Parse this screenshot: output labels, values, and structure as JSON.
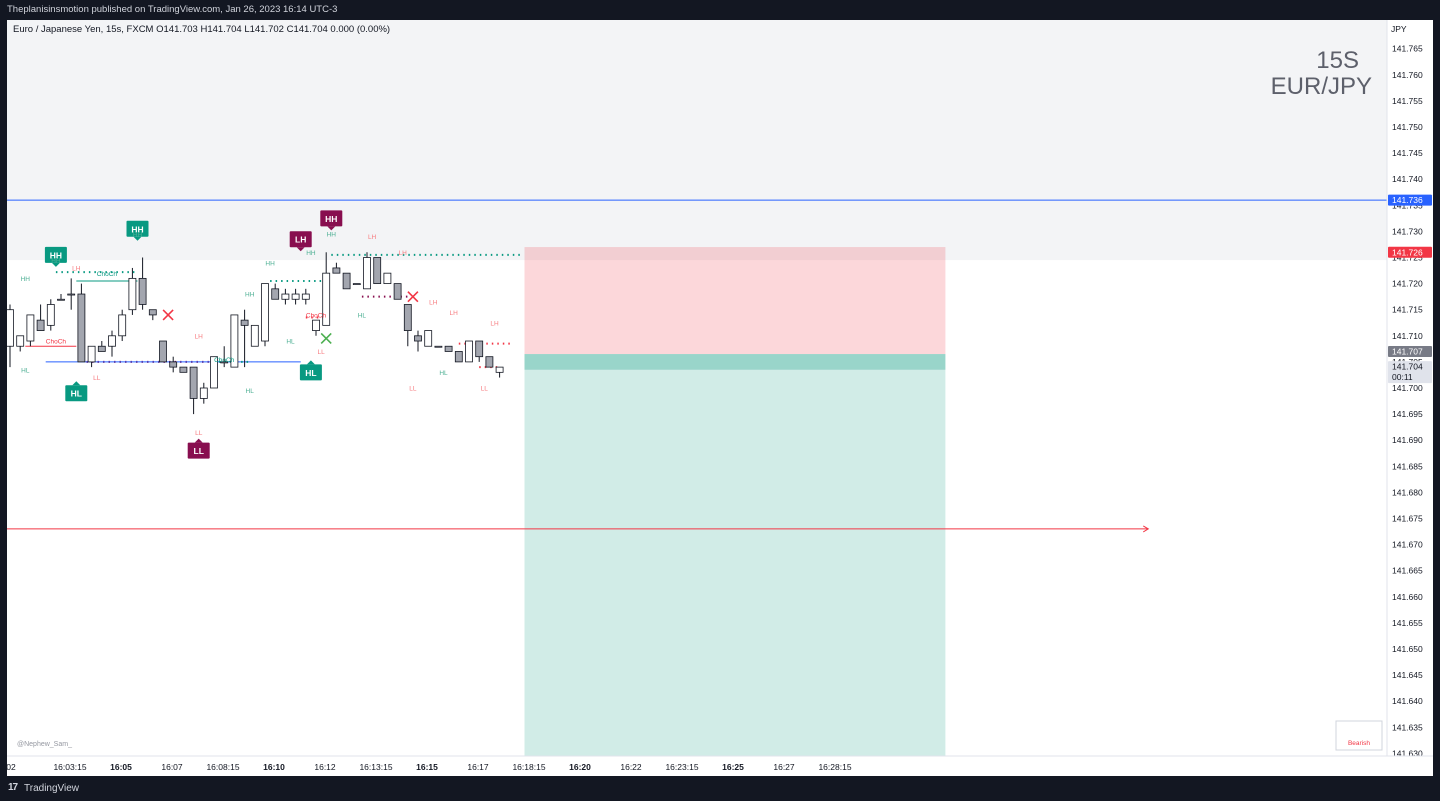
{
  "header": {
    "published_text": "Theplanisinsmotion published on TradingView.com, Jan 26, 2023 16:14 UTC-3",
    "legend_text": "Euro / Japanese Yen, 15s, FXCM  O141.703  H141.704  L141.702  C141.704  0.000 (0.00%)"
  },
  "watermark": {
    "interval": "15S",
    "symbol": "EUR/JPY"
  },
  "author_handle": "@Nephew_Sam_",
  "status_box_text": "Bearish",
  "footer": {
    "brand": "TradingView",
    "logo_glyph": "17"
  },
  "chart_data": {
    "type": "candlestick",
    "currency": "JPY",
    "y_axis": {
      "ylim": [
        141.6295,
        141.7705
      ],
      "ticks": [
        "141.765",
        "141.760",
        "141.755",
        "141.750",
        "141.745",
        "141.740",
        "141.735",
        "141.730",
        "141.725",
        "141.720",
        "141.715",
        "141.710",
        "141.705",
        "141.700",
        "141.695",
        "141.690",
        "141.685",
        "141.680",
        "141.675",
        "141.670",
        "141.665",
        "141.660",
        "141.655",
        "141.650",
        "141.645",
        "141.640",
        "141.635",
        "141.630"
      ]
    },
    "x_axis": {
      "labels": [
        {
          "t": "02",
          "bold": false
        },
        {
          "t": "16:03:15",
          "bold": false
        },
        {
          "t": "16:05",
          "bold": true
        },
        {
          "t": "16:07",
          "bold": false
        },
        {
          "t": "16:08:15",
          "bold": false
        },
        {
          "t": "16:10",
          "bold": true
        },
        {
          "t": "16:12",
          "bold": false
        },
        {
          "t": "16:13:15",
          "bold": false
        },
        {
          "t": "16:15",
          "bold": true
        },
        {
          "t": "16:17",
          "bold": false
        },
        {
          "t": "16:18:15",
          "bold": false
        },
        {
          "t": "16:20",
          "bold": true
        },
        {
          "t": "16:22",
          "bold": false
        },
        {
          "t": "16:23:15",
          "bold": false
        },
        {
          "t": "16:25",
          "bold": true
        },
        {
          "t": "16:27",
          "bold": false
        },
        {
          "t": "16:28:15",
          "bold": false
        }
      ]
    },
    "price_labels": [
      {
        "value": 141.736,
        "text": "141.736",
        "color": "#2962ff"
      },
      {
        "value": 141.726,
        "text": "141.726",
        "color": "#f23645"
      },
      {
        "value": 141.707,
        "text": "141.707",
        "color": "#787b86"
      },
      {
        "value": 141.704,
        "text": "141.704",
        "sub": "00:11",
        "color": "#e0e3eb"
      }
    ],
    "candles": [
      {
        "o": 141.708,
        "h": 141.716,
        "l": 141.704,
        "c": 141.715
      },
      {
        "o": 141.708,
        "h": 141.71,
        "l": 141.707,
        "c": 141.71
      },
      {
        "o": 141.709,
        "h": 141.713,
        "l": 141.708,
        "c": 141.714
      },
      {
        "o": 141.713,
        "h": 141.716,
        "l": 141.712,
        "c": 141.711
      },
      {
        "o": 141.712,
        "h": 141.717,
        "l": 141.711,
        "c": 141.716
      },
      {
        "o": 141.717,
        "h": 141.718,
        "l": 141.717,
        "c": 141.717
      },
      {
        "o": 141.718,
        "h": 141.721,
        "l": 141.715,
        "c": 141.718
      },
      {
        "o": 141.718,
        "h": 141.72,
        "l": 141.705,
        "c": 141.705
      },
      {
        "o": 141.705,
        "h": 141.708,
        "l": 141.704,
        "c": 141.708
      },
      {
        "o": 141.708,
        "h": 141.709,
        "l": 141.707,
        "c": 141.707
      },
      {
        "o": 141.708,
        "h": 141.711,
        "l": 141.706,
        "c": 141.71
      },
      {
        "o": 141.71,
        "h": 141.715,
        "l": 141.709,
        "c": 141.714
      },
      {
        "o": 141.715,
        "h": 141.723,
        "l": 141.714,
        "c": 141.721
      },
      {
        "o": 141.721,
        "h": 141.725,
        "l": 141.715,
        "c": 141.716
      },
      {
        "o": 141.715,
        "h": 141.715,
        "l": 141.713,
        "c": 141.714
      },
      {
        "o": 141.709,
        "h": 141.709,
        "l": 141.705,
        "c": 141.705
      },
      {
        "o": 141.705,
        "h": 141.706,
        "l": 141.703,
        "c": 141.704
      },
      {
        "o": 141.704,
        "h": 141.704,
        "l": 141.703,
        "c": 141.703
      },
      {
        "o": 141.704,
        "h": 141.704,
        "l": 141.695,
        "c": 141.698
      },
      {
        "o": 141.698,
        "h": 141.701,
        "l": 141.697,
        "c": 141.7
      },
      {
        "o": 141.7,
        "h": 141.706,
        "l": 141.7,
        "c": 141.706
      },
      {
        "o": 141.705,
        "h": 141.708,
        "l": 141.704,
        "c": 141.705
      },
      {
        "o": 141.704,
        "h": 141.714,
        "l": 141.704,
        "c": 141.714
      },
      {
        "o": 141.713,
        "h": 141.715,
        "l": 141.704,
        "c": 141.712
      },
      {
        "o": 141.708,
        "h": 141.712,
        "l": 141.708,
        "c": 141.712
      },
      {
        "o": 141.709,
        "h": 141.72,
        "l": 141.708,
        "c": 141.72
      },
      {
        "o": 141.719,
        "h": 141.72,
        "l": 141.717,
        "c": 141.717
      },
      {
        "o": 141.717,
        "h": 141.719,
        "l": 141.716,
        "c": 141.718
      },
      {
        "o": 141.717,
        "h": 141.719,
        "l": 141.716,
        "c": 141.718
      },
      {
        "o": 141.717,
        "h": 141.719,
        "l": 141.716,
        "c": 141.718
      },
      {
        "o": 141.711,
        "h": 141.713,
        "l": 141.71,
        "c": 141.713
      },
      {
        "o": 141.712,
        "h": 141.726,
        "l": 141.712,
        "c": 141.722
      },
      {
        "o": 141.723,
        "h": 141.724,
        "l": 141.722,
        "c": 141.722
      },
      {
        "o": 141.722,
        "h": 141.722,
        "l": 141.719,
        "c": 141.719
      },
      {
        "o": 141.72,
        "h": 141.72,
        "l": 141.72,
        "c": 141.72
      },
      {
        "o": 141.719,
        "h": 141.726,
        "l": 141.719,
        "c": 141.725
      },
      {
        "o": 141.725,
        "h": 141.725,
        "l": 141.72,
        "c": 141.72
      },
      {
        "o": 141.72,
        "h": 141.722,
        "l": 141.72,
        "c": 141.722
      },
      {
        "o": 141.72,
        "h": 141.72,
        "l": 141.717,
        "c": 141.717
      },
      {
        "o": 141.716,
        "h": 141.716,
        "l": 141.708,
        "c": 141.711
      },
      {
        "o": 141.71,
        "h": 141.711,
        "l": 141.707,
        "c": 141.709
      },
      {
        "o": 141.708,
        "h": 141.711,
        "l": 141.708,
        "c": 141.711
      },
      {
        "o": 141.708,
        "h": 141.708,
        "l": 141.708,
        "c": 141.708
      },
      {
        "o": 141.708,
        "h": 141.708,
        "l": 141.707,
        "c": 141.707
      },
      {
        "o": 141.707,
        "h": 141.707,
        "l": 141.705,
        "c": 141.705
      },
      {
        "o": 141.705,
        "h": 141.709,
        "l": 141.705,
        "c": 141.709
      },
      {
        "o": 141.709,
        "h": 141.709,
        "l": 141.705,
        "c": 141.706
      },
      {
        "o": 141.706,
        "h": 141.706,
        "l": 141.704,
        "c": 141.704
      },
      {
        "o": 141.703,
        "h": 141.704,
        "l": 141.702,
        "c": 141.704
      }
    ],
    "levels": [
      {
        "price": 141.736,
        "color": "#2962ff",
        "style": "solid",
        "from": 0,
        "to": 1.0
      },
      {
        "price": 141.673,
        "color": "#f23645",
        "style": "arrow",
        "from": 0,
        "to": 0.827
      }
    ],
    "zones": [
      {
        "top": 141.7705,
        "bottom": 141.7245,
        "color": "rgba(200,205,215,0.22)",
        "from": 0,
        "to": 1.0
      },
      {
        "top": 141.727,
        "bottom": 141.7065,
        "color": "rgba(242,54,69,0.20)",
        "from": 0.375,
        "to": 0.68
      },
      {
        "top": 141.7065,
        "bottom": 141.6295,
        "color": "rgba(8,153,129,0.19)",
        "from": 0.375,
        "to": 0.68
      },
      {
        "top": 141.7065,
        "bottom": 141.7035,
        "color": "rgba(8,153,129,0.28)",
        "from": 0.375,
        "to": 0.68
      }
    ],
    "markers": [
      {
        "type": "badge",
        "label": "HH",
        "color": "#089981",
        "candle": 4.5,
        "price": 141.7255,
        "pointer": "down"
      },
      {
        "type": "badge",
        "label": "HH",
        "color": "#089981",
        "candle": 12.5,
        "price": 141.7305,
        "pointer": "down"
      },
      {
        "type": "badge",
        "label": "HL",
        "color": "#089981",
        "candle": 6.5,
        "price": 141.699,
        "pointer": "up"
      },
      {
        "type": "badge",
        "label": "LH",
        "color": "#880e4f",
        "candle": 28.5,
        "price": 141.7285,
        "pointer": "down"
      },
      {
        "type": "badge",
        "label": "HH",
        "color": "#880e4f",
        "candle": 31.5,
        "price": 141.7325,
        "pointer": "down"
      },
      {
        "type": "badge",
        "label": "HL",
        "color": "#089981",
        "candle": 29.5,
        "price": 141.703,
        "pointer": "up"
      },
      {
        "type": "badge",
        "label": "LL",
        "color": "#880e4f",
        "candle": 18.5,
        "price": 141.688,
        "pointer": "up"
      },
      {
        "type": "tag",
        "label": "HH",
        "color": "#4caf93",
        "candle": 4.5,
        "price": 141.724
      },
      {
        "type": "tag",
        "label": "HH",
        "color": "#4caf93",
        "candle": 1.5,
        "price": 141.7205
      },
      {
        "type": "tag",
        "label": "HH",
        "color": "#4caf93",
        "candle": 12.5,
        "price": 141.729
      },
      {
        "type": "tag",
        "label": "HH",
        "color": "#4caf93",
        "candle": 29.5,
        "price": 141.7255
      },
      {
        "type": "tag",
        "label": "HH",
        "color": "#4caf93",
        "candle": 31.5,
        "price": 141.729
      },
      {
        "type": "tag",
        "label": "HH",
        "color": "#4caf93",
        "candle": 25.5,
        "price": 141.7235
      },
      {
        "type": "tag",
        "label": "HH",
        "color": "#4caf93",
        "candle": 23.5,
        "price": 141.7175
      },
      {
        "type": "tag",
        "label": "LH",
        "color": "#f77c80",
        "candle": 6.5,
        "price": 141.7225
      },
      {
        "type": "tag",
        "label": "LH",
        "color": "#f77c80",
        "candle": 18.5,
        "price": 141.7095
      },
      {
        "type": "tag",
        "label": "LH",
        "color": "#f77c80",
        "candle": 35.5,
        "price": 141.7285
      },
      {
        "type": "tag",
        "label": "LH",
        "color": "#f77c80",
        "candle": 38.5,
        "price": 141.7255
      },
      {
        "type": "tag",
        "label": "LH",
        "color": "#f77c80",
        "candle": 41.5,
        "price": 141.716
      },
      {
        "type": "tag",
        "label": "LH",
        "color": "#f77c80",
        "candle": 43.5,
        "price": 141.714
      },
      {
        "type": "tag",
        "label": "LH",
        "color": "#f77c80",
        "candle": 47.5,
        "price": 141.712
      },
      {
        "type": "tag",
        "label": "HL",
        "color": "#4caf93",
        "candle": 1.5,
        "price": 141.703
      },
      {
        "type": "tag",
        "label": "HL",
        "color": "#4caf93",
        "candle": 23.5,
        "price": 141.699
      },
      {
        "type": "tag",
        "label": "HL",
        "color": "#4caf93",
        "candle": 27.5,
        "price": 141.7085
      },
      {
        "type": "tag",
        "label": "HL",
        "color": "#4caf93",
        "candle": 34.5,
        "price": 141.7135
      },
      {
        "type": "tag",
        "label": "HL",
        "color": "#4caf93",
        "candle": 42.5,
        "price": 141.7025
      },
      {
        "type": "tag",
        "label": "LL",
        "color": "#f77c80",
        "candle": 8.5,
        "price": 141.7015
      },
      {
        "type": "tag",
        "label": "LL",
        "color": "#f77c80",
        "candle": 18.5,
        "price": 141.691
      },
      {
        "type": "tag",
        "label": "LL",
        "color": "#f77c80",
        "candle": 30.5,
        "price": 141.7065
      },
      {
        "type": "tag",
        "label": "LL",
        "color": "#f77c80",
        "candle": 39.5,
        "price": 141.6995
      },
      {
        "type": "tag",
        "label": "LL",
        "color": "#f77c80",
        "candle": 46.5,
        "price": 141.6995
      },
      {
        "type": "tag",
        "label": "ChoCh",
        "color": "#089981",
        "candle": 9.5,
        "price": 141.7215
      },
      {
        "type": "tag",
        "label": "ChoCh",
        "color": "#f23645",
        "candle": 4.5,
        "price": 141.7085
      },
      {
        "type": "tag",
        "label": "ChoCh",
        "color": "#089981",
        "candle": 21.0,
        "price": 141.705
      },
      {
        "type": "tag",
        "label": "ChoCh",
        "color": "#f23645",
        "candle": 30.0,
        "price": 141.7135
      },
      {
        "type": "cross",
        "color": "#f23645",
        "candle": 15.5,
        "price": 141.714
      },
      {
        "type": "cross",
        "color": "#f23645",
        "candle": 39.5,
        "price": 141.7175
      },
      {
        "type": "cross",
        "color": "#4caf50",
        "candle": 31.0,
        "price": 141.7095
      }
    ],
    "segments": [
      {
        "price": 141.7222,
        "from": 4.5,
        "to": 12.5,
        "color": "#089981",
        "dotted": true
      },
      {
        "price": 141.7205,
        "from": 6.5,
        "to": 12.5,
        "color": "#089981",
        "dotted": false
      },
      {
        "price": 141.708,
        "from": 1.5,
        "to": 6.5,
        "color": "#f23645",
        "dotted": false
      },
      {
        "price": 141.705,
        "from": 7.5,
        "to": 19.5,
        "color": "#880e4f",
        "dotted": true
      },
      {
        "price": 141.705,
        "from": 3.5,
        "to": 28.5,
        "color": "#2962ff",
        "dotted": false
      },
      {
        "price": 141.705,
        "from": 20.5,
        "to": 23.5,
        "color": "#089981",
        "dotted": true
      },
      {
        "price": 141.7205,
        "from": 25.5,
        "to": 30.5,
        "color": "#089981",
        "dotted": true
      },
      {
        "price": 141.7135,
        "from": 29.0,
        "to": 31.0,
        "color": "#f23645",
        "dotted": true
      },
      {
        "price": 141.7255,
        "from": 31.5,
        "to": 50.0,
        "color": "#089981",
        "dotted": true
      },
      {
        "price": 141.7175,
        "from": 34.5,
        "to": 39.0,
        "color": "#880e4f",
        "dotted": true
      },
      {
        "price": 141.7085,
        "from": 44.0,
        "to": 49.0,
        "color": "#f23645",
        "dotted": true
      },
      {
        "price": 141.704,
        "from": 46.0,
        "to": 48.0,
        "color": "#f23645",
        "dotted": true
      }
    ]
  }
}
